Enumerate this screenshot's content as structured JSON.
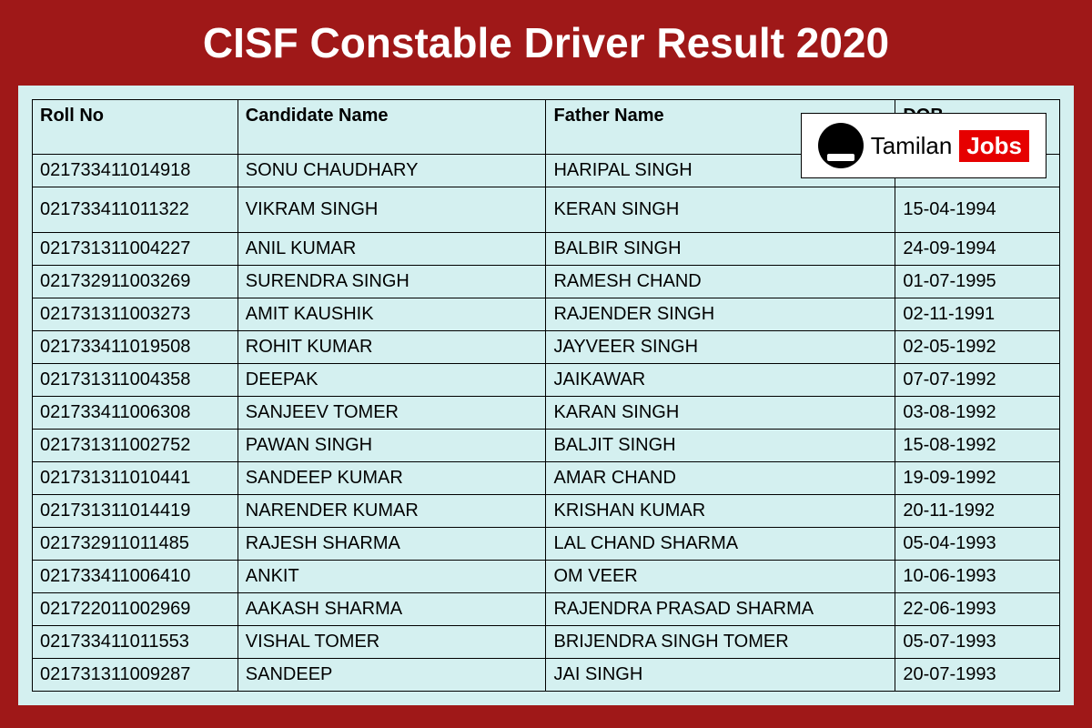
{
  "header": {
    "title": "CISF Constable Driver Result 2020",
    "title_color": "#ffffff",
    "title_fontsize": 46,
    "background_color": "#9f1818"
  },
  "content": {
    "background_color": "#d4f0f0",
    "border_color": "#000000"
  },
  "logo": {
    "text1": "Tamilan",
    "text2": "Jobs",
    "badge_bg": "#ffffff",
    "accent_bg": "#e60000"
  },
  "table": {
    "columns": [
      "Roll No",
      "Candidate Name",
      "Father Name",
      "DOB"
    ],
    "column_widths": [
      "20%",
      "30%",
      "34%",
      "16%"
    ],
    "cell_fontsize": 20,
    "rows": [
      {
        "roll": "021733411014918",
        "name": "SONU CHAUDHARY",
        "father": "HARIPAL SINGH",
        "dob": "",
        "spacer": false
      },
      {
        "roll": "021733411011322",
        "name": "VIKRAM SINGH",
        "father": "KERAN SINGH",
        "dob": "15-04-1994",
        "spacer": true
      },
      {
        "roll": "021731311004227",
        "name": "ANIL KUMAR",
        "father": "BALBIR SINGH",
        "dob": "24-09-1994",
        "spacer": false
      },
      {
        "roll": "021732911003269",
        "name": "SURENDRA SINGH",
        "father": "RAMESH CHAND",
        "dob": "01-07-1995",
        "spacer": false
      },
      {
        "roll": "021731311003273",
        "name": "AMIT KAUSHIK",
        "father": "RAJENDER SINGH",
        "dob": "02-11-1991",
        "spacer": false
      },
      {
        "roll": "021733411019508",
        "name": "ROHIT KUMAR",
        "father": "JAYVEER SINGH",
        "dob": "02-05-1992",
        "spacer": false
      },
      {
        "roll": "021731311004358",
        "name": "DEEPAK",
        "father": "JAIKAWAR",
        "dob": "07-07-1992",
        "spacer": false
      },
      {
        "roll": "021733411006308",
        "name": "SANJEEV TOMER",
        "father": "KARAN SINGH",
        "dob": "03-08-1992",
        "spacer": false
      },
      {
        "roll": "021731311002752",
        "name": "PAWAN SINGH",
        "father": "BALJIT SINGH",
        "dob": "15-08-1992",
        "spacer": false
      },
      {
        "roll": "021731311010441",
        "name": "SANDEEP KUMAR",
        "father": "AMAR CHAND",
        "dob": "19-09-1992",
        "spacer": false
      },
      {
        "roll": "021731311014419",
        "name": "NARENDER KUMAR",
        "father": "KRISHAN KUMAR",
        "dob": "20-11-1992",
        "spacer": false
      },
      {
        "roll": "021732911011485",
        "name": "RAJESH SHARMA",
        "father": "LAL CHAND SHARMA",
        "dob": "05-04-1993",
        "spacer": false
      },
      {
        "roll": "021733411006410",
        "name": "ANKIT",
        "father": "OM VEER",
        "dob": "10-06-1993",
        "spacer": false
      },
      {
        "roll": "021722011002969",
        "name": "AAKASH  SHARMA",
        "father": "RAJENDRA PRASAD SHARMA",
        "dob": "22-06-1993",
        "spacer": false
      },
      {
        "roll": "021733411011553",
        "name": "VISHAL TOMER",
        "father": "BRIJENDRA SINGH TOMER",
        "dob": "05-07-1993",
        "spacer": false
      },
      {
        "roll": "021731311009287",
        "name": "SANDEEP",
        "father": "JAI SINGH",
        "dob": "20-07-1993",
        "spacer": false
      }
    ]
  }
}
